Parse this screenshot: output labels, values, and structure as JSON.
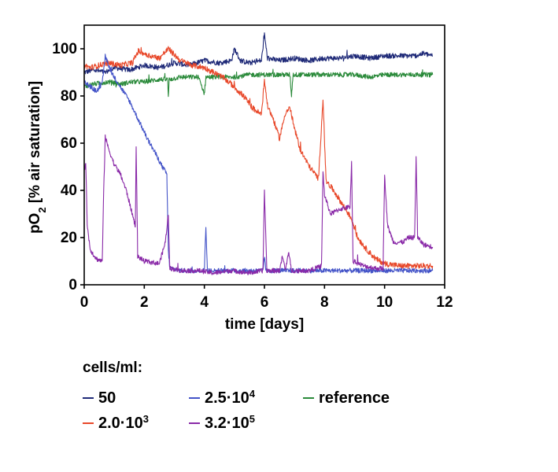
{
  "chart_data": {
    "type": "line",
    "title": "",
    "xlabel": "time [days]",
    "ylabel_parts": {
      "pre": "pO",
      "sub": "2",
      "post": " [% air saturation]"
    },
    "xlim": [
      0,
      12
    ],
    "ylim": [
      0,
      110
    ],
    "xticks": [
      0,
      2,
      4,
      6,
      8,
      10,
      12
    ],
    "yticks": [
      0,
      20,
      40,
      60,
      80,
      100
    ],
    "grid": false,
    "legend_title": "cells/ml:",
    "legend_position": "bottom",
    "legend": [
      {
        "base": "50",
        "sup": "",
        "color": "#1f2a78"
      },
      {
        "base": "2.5·10",
        "sup": "4",
        "color": "#4454c8"
      },
      {
        "base": "reference",
        "sup": "",
        "color": "#2a8a3a"
      },
      {
        "base": "2.0·10",
        "sup": "3",
        "color": "#e8482a"
      },
      {
        "base": "3.2·10",
        "sup": "5",
        "color": "#8a2aa8"
      }
    ],
    "series": [
      {
        "name": "50",
        "color": "#1f2a78",
        "noise": 1.1,
        "points": [
          [
            0,
            90
          ],
          [
            0.3,
            91
          ],
          [
            0.7,
            90
          ],
          [
            1.0,
            92
          ],
          [
            1.5,
            91
          ],
          [
            2.0,
            93
          ],
          [
            2.5,
            92
          ],
          [
            3.0,
            94
          ],
          [
            3.5,
            93
          ],
          [
            4.0,
            95
          ],
          [
            4.5,
            94
          ],
          [
            4.9,
            95
          ],
          [
            5.0,
            100
          ],
          [
            5.2,
            95
          ],
          [
            5.5,
            94
          ],
          [
            5.9,
            95
          ],
          [
            6.0,
            106
          ],
          [
            6.1,
            96
          ],
          [
            6.5,
            95
          ],
          [
            7.0,
            96
          ],
          [
            7.5,
            95
          ],
          [
            8.0,
            96
          ],
          [
            8.5,
            96
          ],
          [
            9.0,
            97
          ],
          [
            9.5,
            96
          ],
          [
            10.0,
            97
          ],
          [
            10.5,
            97
          ],
          [
            11.0,
            97
          ],
          [
            11.3,
            98
          ],
          [
            11.6,
            97
          ]
        ]
      },
      {
        "name": "reference",
        "color": "#2a8a3a",
        "noise": 1.0,
        "points": [
          [
            0,
            84
          ],
          [
            0.3,
            85
          ],
          [
            0.8,
            86
          ],
          [
            1.2,
            85
          ],
          [
            1.6,
            86
          ],
          [
            2.0,
            86
          ],
          [
            2.5,
            87
          ],
          [
            2.78,
            87
          ],
          [
            2.8,
            79
          ],
          [
            2.83,
            87
          ],
          [
            3.2,
            88
          ],
          [
            3.8,
            88
          ],
          [
            4.0,
            81
          ],
          [
            4.05,
            88
          ],
          [
            4.5,
            88
          ],
          [
            5.0,
            88
          ],
          [
            5.5,
            89
          ],
          [
            6.0,
            89
          ],
          [
            6.5,
            89
          ],
          [
            6.85,
            89
          ],
          [
            6.9,
            80
          ],
          [
            6.95,
            89
          ],
          [
            7.5,
            89
          ],
          [
            8.0,
            89
          ],
          [
            8.5,
            89
          ],
          [
            9.0,
            89
          ],
          [
            9.5,
            88
          ],
          [
            10.0,
            89
          ],
          [
            10.5,
            89
          ],
          [
            11.0,
            89
          ],
          [
            11.6,
            89
          ]
        ]
      },
      {
        "name": "2.0·10³",
        "color": "#e8482a",
        "noise": 1.2,
        "points": [
          [
            0,
            93
          ],
          [
            0.2,
            92
          ],
          [
            0.5,
            93
          ],
          [
            0.8,
            94
          ],
          [
            1.2,
            93
          ],
          [
            1.6,
            94
          ],
          [
            1.8,
            99
          ],
          [
            2.2,
            97
          ],
          [
            2.5,
            96
          ],
          [
            2.8,
            100
          ],
          [
            3.2,
            95
          ],
          [
            3.6,
            93
          ],
          [
            4.0,
            92
          ],
          [
            4.3,
            90
          ],
          [
            4.6,
            88
          ],
          [
            4.9,
            85
          ],
          [
            5.3,
            80
          ],
          [
            5.6,
            75
          ],
          [
            5.9,
            72
          ],
          [
            6.0,
            87
          ],
          [
            6.1,
            76
          ],
          [
            6.3,
            70
          ],
          [
            6.5,
            62
          ],
          [
            6.7,
            73
          ],
          [
            6.85,
            75
          ],
          [
            7.0,
            66
          ],
          [
            7.2,
            57
          ],
          [
            7.5,
            50
          ],
          [
            7.8,
            45
          ],
          [
            7.95,
            79
          ],
          [
            8.05,
            44
          ],
          [
            8.3,
            40
          ],
          [
            8.6,
            34
          ],
          [
            8.9,
            28
          ],
          [
            9.1,
            20
          ],
          [
            9.4,
            15
          ],
          [
            9.7,
            11
          ],
          [
            10.0,
            9
          ],
          [
            10.5,
            8
          ],
          [
            11.0,
            8
          ],
          [
            11.6,
            8
          ]
        ]
      },
      {
        "name": "2.5·10⁴",
        "color": "#4454c8",
        "noise": 1.0,
        "points": [
          [
            0,
            86
          ],
          [
            0.2,
            84
          ],
          [
            0.4,
            82
          ],
          [
            0.6,
            85
          ],
          [
            0.7,
            97
          ],
          [
            0.9,
            90
          ],
          [
            1.2,
            84
          ],
          [
            1.5,
            78
          ],
          [
            1.8,
            70
          ],
          [
            2.1,
            62
          ],
          [
            2.4,
            55
          ],
          [
            2.6,
            50
          ],
          [
            2.75,
            47
          ],
          [
            2.8,
            15
          ],
          [
            2.85,
            7
          ],
          [
            3.2,
            6
          ],
          [
            3.7,
            6
          ],
          [
            4.0,
            6
          ],
          [
            4.05,
            25
          ],
          [
            4.1,
            6
          ],
          [
            4.5,
            6
          ],
          [
            5.0,
            6
          ],
          [
            5.5,
            6
          ],
          [
            5.95,
            6
          ],
          [
            6.0,
            12
          ],
          [
            6.05,
            6
          ],
          [
            6.5,
            6
          ],
          [
            7.0,
            6
          ],
          [
            7.5,
            6
          ],
          [
            8.0,
            6
          ],
          [
            8.5,
            6
          ],
          [
            9.0,
            6
          ],
          [
            9.5,
            6
          ],
          [
            10.0,
            6
          ],
          [
            10.5,
            6
          ],
          [
            11.0,
            6
          ],
          [
            11.6,
            6
          ]
        ]
      },
      {
        "name": "3.2·10⁵",
        "color": "#8a2aa8",
        "noise": 1.0,
        "points": [
          [
            0,
            48
          ],
          [
            0.05,
            52
          ],
          [
            0.1,
            25
          ],
          [
            0.2,
            15
          ],
          [
            0.4,
            11
          ],
          [
            0.6,
            10
          ],
          [
            0.65,
            40
          ],
          [
            0.7,
            63
          ],
          [
            0.8,
            58
          ],
          [
            1.0,
            51
          ],
          [
            1.2,
            47
          ],
          [
            1.4,
            40
          ],
          [
            1.6,
            30
          ],
          [
            1.7,
            25
          ],
          [
            1.73,
            58
          ],
          [
            1.78,
            12
          ],
          [
            2.0,
            10
          ],
          [
            2.5,
            9
          ],
          [
            2.7,
            18
          ],
          [
            2.8,
            30
          ],
          [
            2.85,
            7
          ],
          [
            3.2,
            6
          ],
          [
            3.8,
            6
          ],
          [
            4.3,
            5
          ],
          [
            4.9,
            6
          ],
          [
            5.5,
            5
          ],
          [
            5.95,
            6
          ],
          [
            6.0,
            40
          ],
          [
            6.08,
            6
          ],
          [
            6.5,
            6
          ],
          [
            6.6,
            12
          ],
          [
            6.7,
            6
          ],
          [
            6.8,
            14
          ],
          [
            6.9,
            6
          ],
          [
            7.5,
            6
          ],
          [
            7.9,
            8
          ],
          [
            7.95,
            48
          ],
          [
            8.0,
            38
          ],
          [
            8.2,
            30
          ],
          [
            8.5,
            32
          ],
          [
            8.85,
            33
          ],
          [
            8.9,
            52
          ],
          [
            8.95,
            10
          ],
          [
            9.3,
            8
          ],
          [
            9.7,
            7
          ],
          [
            9.95,
            7
          ],
          [
            10.0,
            46
          ],
          [
            10.1,
            25
          ],
          [
            10.3,
            18
          ],
          [
            10.6,
            18
          ],
          [
            10.8,
            20
          ],
          [
            11.0,
            20
          ],
          [
            11.05,
            55
          ],
          [
            11.1,
            20
          ],
          [
            11.3,
            17
          ],
          [
            11.6,
            16
          ]
        ]
      }
    ]
  }
}
